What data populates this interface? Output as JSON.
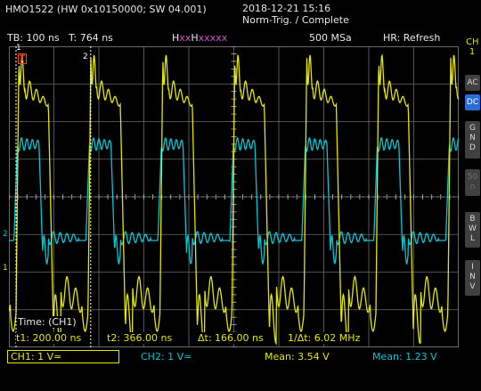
{
  "header": {
    "model": "HMO1522 (HW 0x10150000; SW 04.001)",
    "datetime": "2018-12-21 15:16",
    "trigger_status": "Norm-Trig. / Complete"
  },
  "info": {
    "timebase": "TB: 100 ns",
    "trigger_time": "T: 764 ns",
    "zoom_prefix": "H",
    "zoom_xx1": "xx",
    "zoom_h2": "H",
    "zoom_xx2": "xxxxx",
    "samplerate": "500 MSa",
    "acq_mode": "HR: Refresh"
  },
  "side_menu": {
    "channel_title": "CH\n1",
    "ac": "AC",
    "dc": "DC",
    "gnd": "G\nN\nD",
    "ohm": "50\n∩",
    "bwl": "B\nW\nL",
    "inv": "I\nN\nV"
  },
  "cursor": {
    "title": "Time: (CH1)",
    "t1": "t1: 200.00 ns",
    "t2": "t2: 366.00 ns",
    "dt": "Δt: 166.00 ns",
    "inv_dt": "1/Δt: 6.02 MHz",
    "cursor1_marker": "1",
    "cursor2_marker": "2"
  },
  "footer": {
    "ch1": "CH1: 1 V≃",
    "ch2": "CH2: 1 V≃",
    "mean_ch1": "Mean: 3.54 V",
    "mean_ch2": "Mean: 1.23 V"
  },
  "markers": {
    "trigger": "T",
    "ch1_level": "1",
    "ch2_level": "2"
  },
  "colors": {
    "ch1": "#e6e600",
    "ch2": "#00c8d8",
    "grid": "#6a6a6a",
    "trigger": "#ff4000",
    "dc_active": "#2a6cd6",
    "cursor": "#ffffff"
  },
  "signals": {
    "period_ns": 160,
    "ch1_description": "switching waveform, 1 V/div",
    "ch2_description": "switching waveform, 1 V/div"
  }
}
